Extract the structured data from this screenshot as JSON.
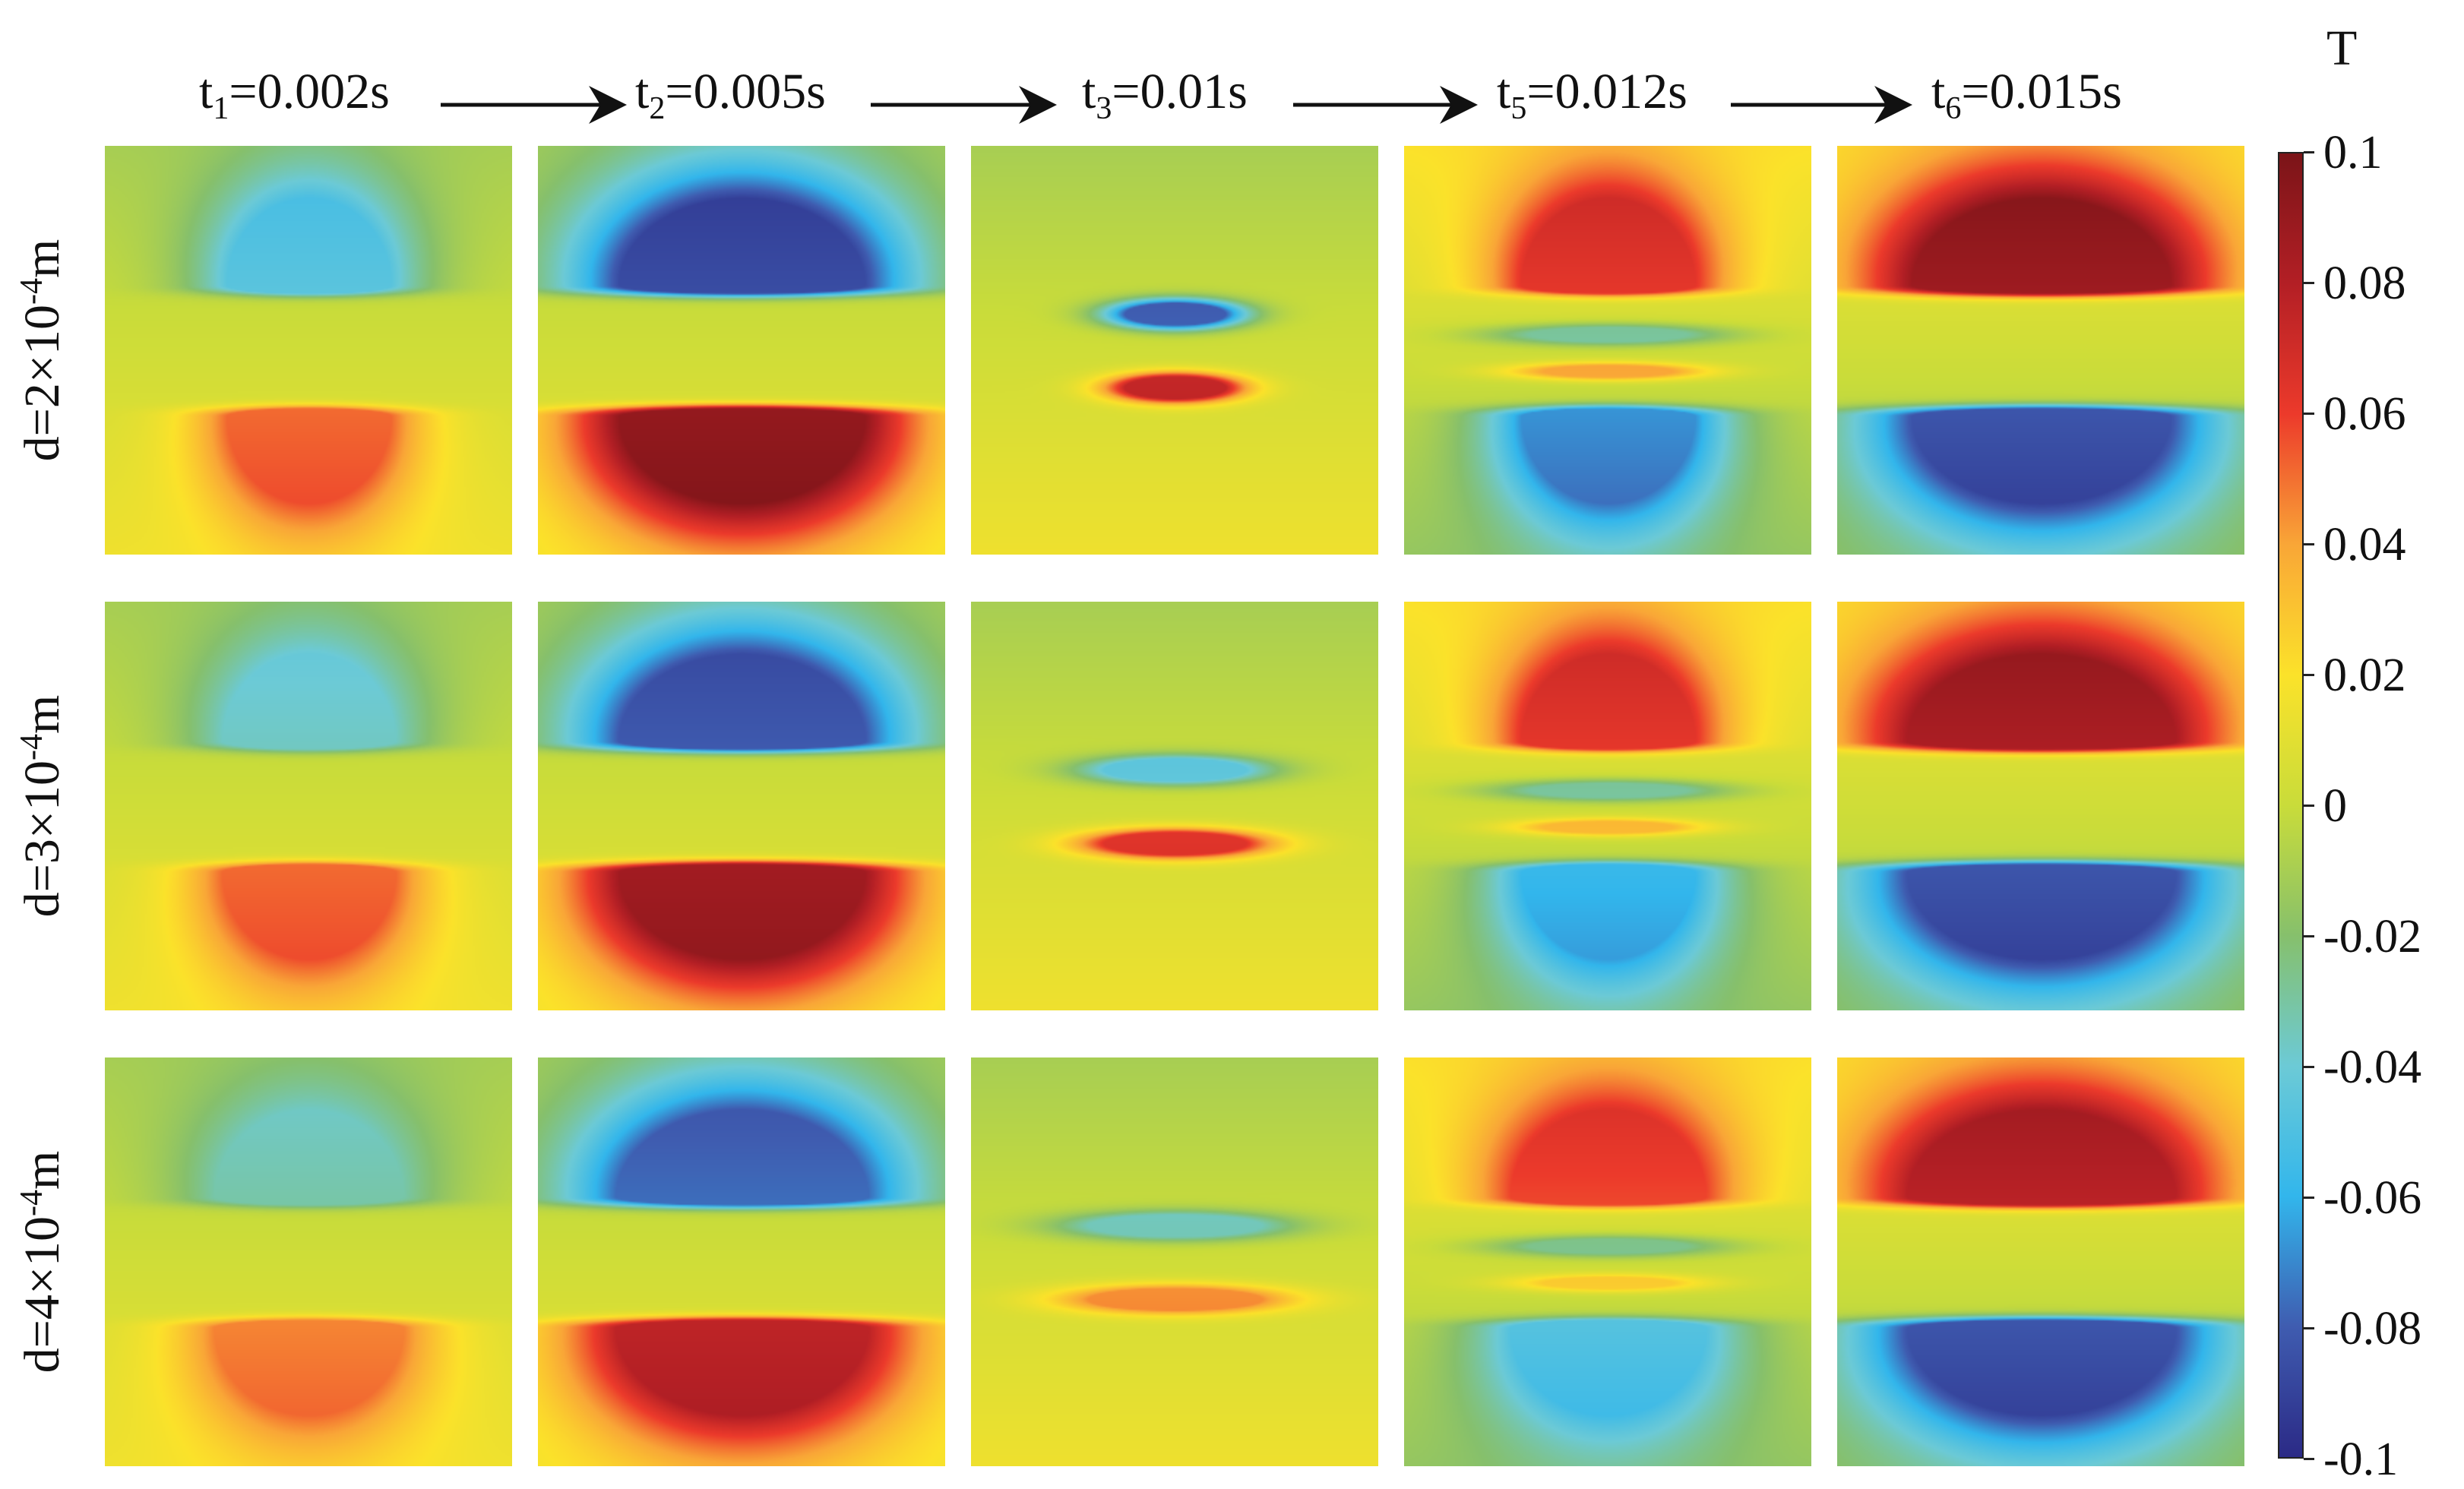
{
  "time_labels": [
    {
      "t": "t",
      "sub": "1",
      "rest": "=0.002s"
    },
    {
      "t": "t",
      "sub": "2",
      "rest": "=0.005s"
    },
    {
      "t": "t",
      "sub": "3",
      "rest": "=0.01s"
    },
    {
      "t": "t",
      "sub": "5",
      "rest": "=0.012s"
    },
    {
      "t": "t",
      "sub": "6",
      "rest": "=0.015s"
    }
  ],
  "row_labels": [
    {
      "pre": "d=2×10",
      "sup": "-4",
      "post": "m"
    },
    {
      "pre": "d=3×10",
      "sup": "-4",
      "post": "m"
    },
    {
      "pre": "d=4×10",
      "sup": "-4",
      "post": "m"
    }
  ],
  "colorbar": {
    "title": "T",
    "min": -0.1,
    "max": 0.1,
    "ticks": [
      "0.1",
      "0.08",
      "0.06",
      "0.04",
      "0.02",
      "0",
      "-0.02",
      "-0.04",
      "-0.06",
      "-0.08",
      "-0.1"
    ],
    "colormap": [
      "#2b2a86",
      "#3f5cb0",
      "#32b6ec",
      "#6ccad6",
      "#86c06c",
      "#c9dc3a",
      "#fbe22a",
      "#f9a637",
      "#ec3a2b",
      "#b31f25",
      "#7b1418"
    ]
  },
  "panels": [
    [
      {
        "top": -0.045,
        "bot": 0.045,
        "ext": 0.52,
        "inner": false
      },
      {
        "top": -0.085,
        "bot": 0.085,
        "ext": 0.78,
        "inner": false
      },
      {
        "top": -0.08,
        "bot": 0.07,
        "ext": 0.32,
        "inner": false,
        "thin": true
      },
      {
        "top": 0.055,
        "bot": -0.065,
        "ext": 0.55,
        "inner": true
      },
      {
        "top": 0.08,
        "bot": -0.08,
        "ext": 0.82,
        "inner": false
      }
    ],
    [
      {
        "top": -0.035,
        "bot": 0.045,
        "ext": 0.55,
        "inner": false
      },
      {
        "top": -0.08,
        "bot": 0.08,
        "ext": 0.78,
        "inner": false
      },
      {
        "top": -0.045,
        "bot": 0.06,
        "ext": 0.45,
        "inner": false,
        "thin": true
      },
      {
        "top": 0.055,
        "bot": -0.055,
        "ext": 0.55,
        "inner": true
      },
      {
        "top": 0.075,
        "bot": -0.08,
        "ext": 0.85,
        "inner": false
      }
    ],
    [
      {
        "top": -0.03,
        "bot": 0.04,
        "ext": 0.6,
        "inner": false
      },
      {
        "top": -0.075,
        "bot": 0.07,
        "ext": 0.8,
        "inner": false
      },
      {
        "top": -0.035,
        "bot": 0.04,
        "ext": 0.55,
        "inner": false,
        "thin": true
      },
      {
        "top": 0.05,
        "bot": -0.045,
        "ext": 0.62,
        "inner": true
      },
      {
        "top": 0.07,
        "bot": -0.08,
        "ext": 0.85,
        "inner": false
      }
    ]
  ]
}
